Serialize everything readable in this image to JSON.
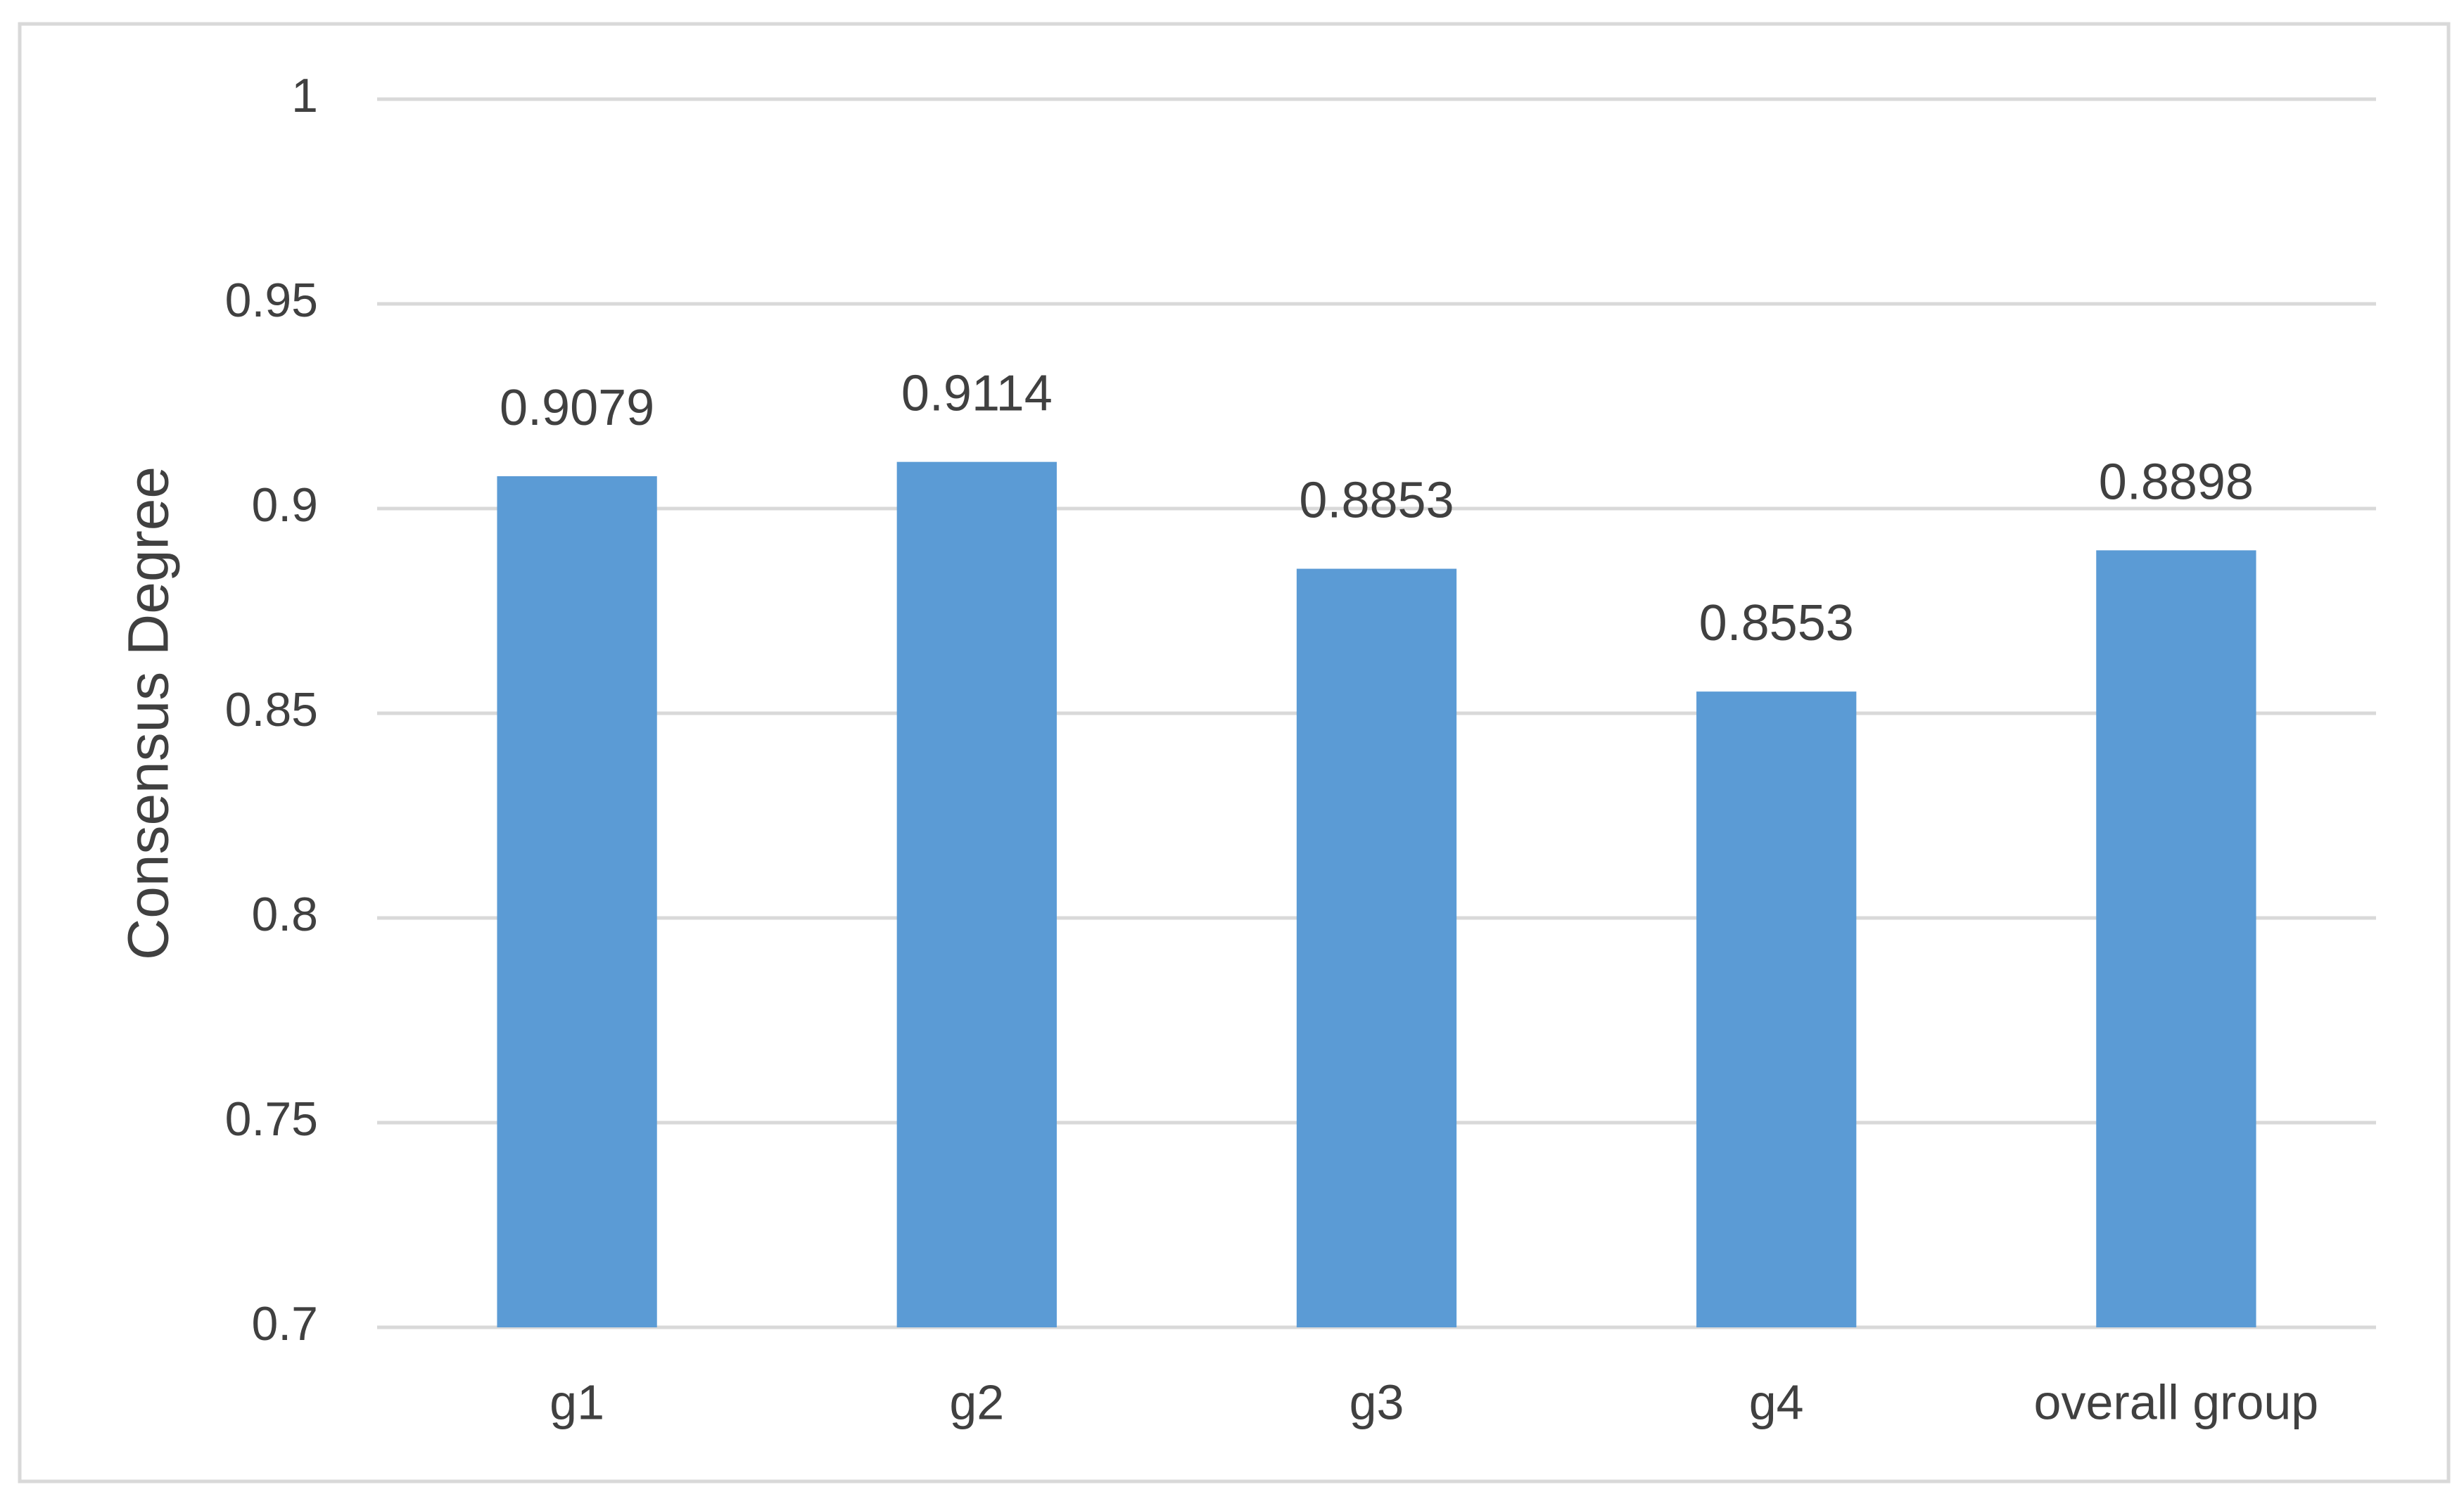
{
  "chart_data": {
    "type": "bar",
    "y_label": "Consensus Degree",
    "categories": [
      "g1",
      "g2",
      "g3",
      "g4",
      "overall group"
    ],
    "values": [
      0.9079,
      0.9114,
      0.8853,
      0.8553,
      0.8898
    ],
    "color": "#5b9bd5",
    "ylim": [
      0.7,
      1
    ],
    "yticks": [
      0.7,
      0.75,
      0.8,
      0.85,
      0.9,
      0.95,
      1
    ],
    "grid": true
  }
}
